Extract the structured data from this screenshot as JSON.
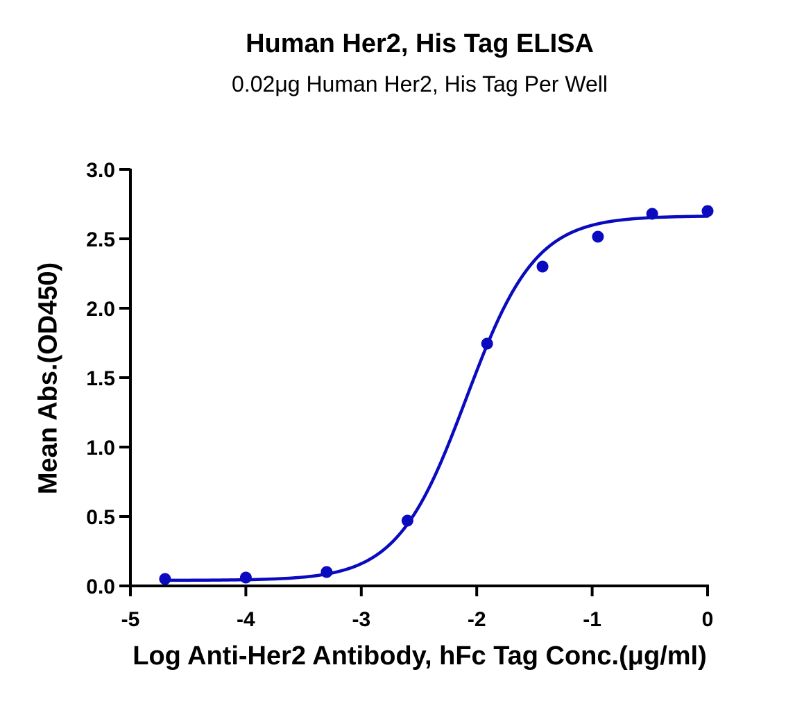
{
  "chart_data": {
    "type": "scatter",
    "title": "Human Her2, His Tag ELISA",
    "subtitle": "0.02μg Human Her2, His Tag Per Well",
    "xlabel": "Log Anti-Her2 Antibody, hFc Tag Conc.(μg/ml)",
    "ylabel": "Mean Abs.(OD450)",
    "xlim": [
      -5,
      0
    ],
    "ylim": [
      0,
      3.0
    ],
    "x_ticks": [
      -5,
      -4,
      -3,
      -2,
      -1,
      0
    ],
    "x_tick_labels": [
      "-5",
      "-4",
      "-3",
      "-2",
      "-1",
      "0"
    ],
    "y_ticks": [
      0,
      0.5,
      1.0,
      1.5,
      2.0,
      2.5,
      3.0
    ],
    "y_tick_labels": [
      "0.0",
      "0.5",
      "1.0",
      "1.5",
      "2.0",
      "2.5",
      "3.0"
    ],
    "grid": false,
    "legend": null,
    "series": [
      {
        "name": "Anti-Her2 Antibody, hFc Tag",
        "color": "#0A0ABF",
        "marker": "circle",
        "x": [
          -4.7,
          -4.0,
          -3.3,
          -2.6,
          -1.91,
          -1.43,
          -0.95,
          -0.48,
          0.0
        ],
        "y": [
          0.05,
          0.06,
          0.1,
          0.47,
          1.745,
          2.3,
          2.515,
          2.68,
          2.7
        ]
      }
    ],
    "fit": {
      "model": "4PL",
      "bottom": 0.04,
      "top": 2.665,
      "logEC50": -2.09,
      "hill": 1.45,
      "x_range": [
        -4.7,
        0.0
      ],
      "color": "#0A0ABF"
    }
  }
}
